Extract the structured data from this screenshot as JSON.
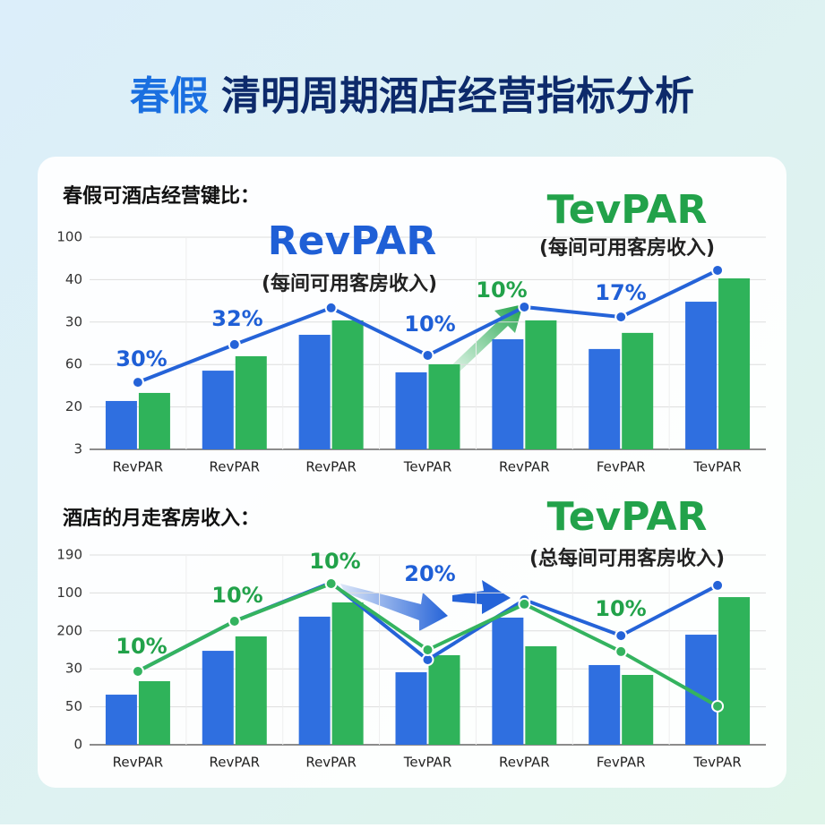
{
  "title": [
    "春假",
    "清明周期酒店经营指标分析"
  ],
  "chart_data": [
    {
      "type": "combo",
      "subtitle": "春假可酒店经营键比：",
      "categories": [
        "RevPAR",
        "RevPAR",
        "RevPAR",
        "TevPAR",
        "RevPAR",
        "FevPAR",
        "TevPAR"
      ],
      "ylim": [
        0,
        100
      ],
      "yticks": [
        {
          "value": 0,
          "label": "3"
        },
        20,
        {
          "value": 40,
          "label": "60"
        },
        {
          "value": 60,
          "label": "30"
        },
        {
          "value": 80,
          "label": "40"
        },
        100
      ],
      "grid": true,
      "series": [
        {
          "type": "bar",
          "color": "#2f6fe0",
          "values": [
            22.8,
            37.1,
            54.0,
            36.3,
            51.9,
            47.3,
            69.6
          ]
        },
        {
          "type": "bar",
          "color": "#2fb35a",
          "values": [
            26.6,
            43.9,
            60.8,
            40.1,
            60.8,
            54.9,
            80.6
          ]
        },
        {
          "type": "line",
          "color": "#2563d8",
          "values": [
            31.6,
            49.4,
            66.7,
            44.3,
            67.1,
            62.4,
            84.4
          ]
        }
      ],
      "annotations": [
        "RevPAR",
        "(每间可用客房收入)",
        "TevPAR",
        "(每间可用客房收入)"
      ],
      "growth_labels": [
        "30%",
        "32%",
        "10%",
        "10%",
        "17%"
      ]
    },
    {
      "type": "combo",
      "subtitle": "酒店的月走客房收入：",
      "categories": [
        "RevPAR",
        "RevPAR",
        "RevPAR",
        "TevPAR",
        "RevPAR",
        "FevPAR",
        "TevPAR"
      ],
      "ylim": [
        0,
        100
      ],
      "yticks": [
        0,
        {
          "value": 20,
          "label": "50"
        },
        {
          "value": 40,
          "label": "30"
        },
        {
          "value": 60,
          "label": "200"
        },
        {
          "value": 80,
          "label": "100"
        },
        {
          "value": 100,
          "label": "190"
        }
      ],
      "grid": true,
      "series": [
        {
          "type": "bar",
          "color": "#2f6fe0",
          "values": [
            26.4,
            49.5,
            67.5,
            38.2,
            67.0,
            42.0,
            58.0
          ]
        },
        {
          "type": "bar",
          "color": "#2fb35a",
          "values": [
            33.5,
            57.1,
            75.0,
            47.2,
            51.9,
            36.8,
            77.8
          ]
        },
        {
          "type": "line",
          "color": "#2563d8",
          "values": [
            38.7,
            65.1,
            85.4,
            44.8,
            76.4,
            57.5,
            84.0
          ]
        },
        {
          "type": "line",
          "color": "#34b35f",
          "values": [
            38.7,
            65.1,
            84.9,
            50.0,
            74.1,
            49.1,
            20.3
          ]
        }
      ],
      "annotations": [
        "TevPAR",
        "(总每间可用客房收入)"
      ],
      "growth_labels": [
        "10%",
        "10%",
        "10%",
        "20%",
        "10%"
      ]
    }
  ]
}
